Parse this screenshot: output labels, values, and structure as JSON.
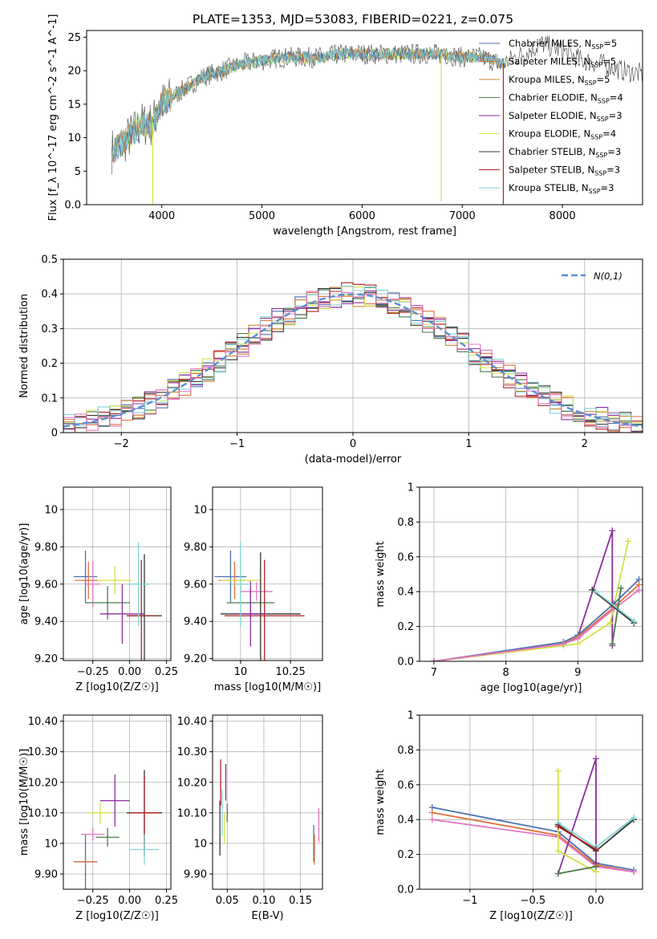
{
  "figure": {
    "title": "PLATE=1353, MJD=53083, FIBERID=0221, z=0.075"
  },
  "colors": {
    "Chabrier MILES": "#4c72b0",
    "Salpeter MILES": "#e0703c",
    "Kroupa MILES": "#c88a2a",
    "Chabrier ELODIE": "#4a7a4a",
    "Salpeter ELODIE": "#8b2d9e",
    "Kroupa ELODIE": "#d5e04a",
    "Chabrier STELIB": "#333333",
    "Salpeter STELIB": "#b22222",
    "Kroupa STELIB": "#7fd3d3",
    "normal": "#5b8ed6",
    "pink": "#e377c2",
    "lightblue": "#6a9be0"
  },
  "chart_data": [
    {
      "id": "spectrum",
      "type": "line",
      "xlabel": "wavelength [Angstrom, rest frame]",
      "ylabel": "Flux [f_λ 10^-17 erg cm^-2 s^-1 A^-1]",
      "ylabel_parts": [
        "Flux [f",
        "λ",
        "10",
        "−17",
        " erg cm",
        "−2",
        " s",
        "−1",
        " A",
        "−1",
        "]"
      ],
      "xlim": [
        3250,
        8800
      ],
      "ylim": [
        0,
        26
      ],
      "xticks": [
        4000,
        5000,
        6000,
        7000,
        8000
      ],
      "yticks": [
        0,
        5,
        10,
        15,
        20,
        25
      ],
      "continuum": {
        "x": [
          3500,
          3600,
          3700,
          3800,
          3900,
          4000,
          4100,
          4200,
          4400,
          4600,
          4800,
          5000,
          5200,
          5400,
          5600,
          5800,
          6000,
          6200,
          6400,
          6600,
          6800,
          7000,
          7200,
          7400,
          7600,
          7800,
          8000,
          8200,
          8400,
          8600,
          8800
        ],
        "y": [
          8,
          9,
          10.5,
          12,
          12,
          15,
          16,
          17,
          19,
          20,
          21,
          21.5,
          22,
          22,
          22,
          22.5,
          22.5,
          22.5,
          22.5,
          22.5,
          22.5,
          22,
          22,
          21,
          22.5,
          24,
          23,
          21.5,
          21,
          20,
          19.5
        ]
      },
      "legend": [
        {
          "label": "Chabrier MILES",
          "nssp": "5"
        },
        {
          "label": "Salpeter MILES",
          "nssp": "5"
        },
        {
          "label": "Kroupa MILES",
          "nssp": "5"
        },
        {
          "label": "Chabrier ELODIE",
          "nssp": "4"
        },
        {
          "label": "Salpeter ELODIE",
          "nssp": "3"
        },
        {
          "label": "Kroupa ELODIE",
          "nssp": "4"
        },
        {
          "label": "Chabrier STELIB",
          "nssp": "3"
        },
        {
          "label": "Salpeter STELIB",
          "nssp": "3"
        },
        {
          "label": "Kroupa STELIB",
          "nssp": "3"
        }
      ]
    },
    {
      "id": "residuals",
      "type": "line",
      "xlabel": "(data-model)/error",
      "ylabel": "Normed distribution",
      "xlim": [
        -2.5,
        2.5
      ],
      "ylim": [
        0,
        0.5
      ],
      "xticks": [
        -2,
        -1,
        0,
        1,
        2
      ],
      "yticks": [
        0.0,
        0.1,
        0.2,
        0.3,
        0.4,
        0.5
      ],
      "legend_label": "N(0,1)",
      "grid": true
    },
    {
      "id": "age-vs-Z",
      "type": "scatter",
      "xlabel": "Z [log10(Z/Z☉)]",
      "ylabel": "age [log10(age/yr)]",
      "xlim": [
        -0.45,
        0.28
      ],
      "ylim": [
        9.19,
        10.12
      ],
      "xticks": [
        -0.25,
        0.0,
        0.25
      ],
      "yticks": [
        9.2,
        9.4,
        9.6,
        9.8,
        10.0
      ],
      "points": [
        {
          "x": -0.3,
          "y": 9.64,
          "dx": 0.08,
          "dy": 0.28,
          "series": "Chabrier MILES"
        },
        {
          "x": -0.28,
          "y": 9.62,
          "dx": 0.09,
          "dy": 0.2,
          "series": "Salpeter MILES"
        },
        {
          "x": -0.25,
          "y": 9.6,
          "dx": 0.05,
          "dy": 0.25,
          "series": "pink"
        },
        {
          "x": -0.1,
          "y": 9.62,
          "dx": 0.12,
          "dy": 0.15,
          "series": "Kroupa ELODIE"
        },
        {
          "x": -0.15,
          "y": 9.5,
          "dx": 0.15,
          "dy": 0.18,
          "series": "Chabrier ELODIE"
        },
        {
          "x": -0.05,
          "y": 9.44,
          "dx": 0.15,
          "dy": 0.32,
          "series": "Salpeter ELODIE"
        },
        {
          "x": 0.1,
          "y": 9.43,
          "dx": 0.12,
          "dy": 0.66,
          "series": "Chabrier STELIB"
        },
        {
          "x": 0.08,
          "y": 9.43,
          "dx": 0.1,
          "dy": 0.6,
          "series": "Salpeter STELIB"
        },
        {
          "x": 0.06,
          "y": 9.6,
          "dx": 0.08,
          "dy": 0.45,
          "series": "Kroupa STELIB"
        }
      ]
    },
    {
      "id": "age-vs-mass",
      "type": "scatter",
      "xlabel": "mass [log10(M/M☉)]",
      "ylabel": "",
      "xlim": [
        9.86,
        10.41
      ],
      "ylim": [
        9.19,
        10.12
      ],
      "xticks": [
        10.0,
        10.25
      ],
      "yticks": [
        9.2,
        9.4,
        9.6,
        9.8,
        10.0
      ],
      "points": [
        {
          "x": 9.95,
          "y": 9.64,
          "dx": 0.08,
          "dy": 0.28,
          "series": "Chabrier MILES"
        },
        {
          "x": 9.97,
          "y": 9.62,
          "dx": 0.08,
          "dy": 0.2,
          "series": "Salpeter MILES"
        },
        {
          "x": 10.0,
          "y": 9.62,
          "dx": 0.1,
          "dy": 0.2,
          "series": "Kroupa ELODIE"
        },
        {
          "x": 10.05,
          "y": 9.5,
          "dx": 0.12,
          "dy": 0.15,
          "series": "Chabrier ELODIE"
        },
        {
          "x": 10.08,
          "y": 9.56,
          "dx": 0.08,
          "dy": 0.1,
          "series": "pink"
        },
        {
          "x": 10.1,
          "y": 9.44,
          "dx": 0.2,
          "dy": 0.66,
          "series": "Chabrier STELIB"
        },
        {
          "x": 10.12,
          "y": 9.43,
          "dx": 0.2,
          "dy": 0.6,
          "series": "Salpeter STELIB"
        },
        {
          "x": 10.05,
          "y": 9.44,
          "dx": 0.07,
          "dy": 0.35,
          "series": "Salpeter ELODIE"
        },
        {
          "x": 10.0,
          "y": 9.6,
          "dx": 0.04,
          "dy": 0.45,
          "series": "Kroupa STELIB"
        }
      ]
    },
    {
      "id": "weight-vs-age",
      "type": "line",
      "xlabel": "age [log10(age/yr)]",
      "ylabel": "mass weight",
      "xlim": [
        6.8,
        9.9
      ],
      "ylim": [
        0,
        1.0
      ],
      "xticks": [
        7,
        8,
        9
      ],
      "yticks": [
        0.0,
        0.2,
        0.4,
        0.6,
        0.8,
        1.0
      ],
      "grid": true,
      "series": [
        {
          "name": "Salpeter ELODIE",
          "x": [
            7.0,
            8.8,
            9.0,
            9.48,
            9.48
          ],
          "y": [
            0.0,
            0.1,
            0.14,
            0.75,
            0.09
          ]
        },
        {
          "name": "Kroupa ELODIE",
          "x": [
            7.0,
            8.8,
            9.0,
            9.45,
            9.7
          ],
          "y": [
            0.0,
            0.09,
            0.1,
            0.22,
            0.69
          ]
        },
        {
          "name": "Chabrier MILES",
          "x": [
            7.0,
            8.8,
            9.0,
            9.5,
            9.85
          ],
          "y": [
            0.0,
            0.11,
            0.15,
            0.33,
            0.47
          ]
        },
        {
          "name": "Salpeter MILES",
          "x": [
            7.0,
            8.8,
            9.0,
            9.5,
            9.85
          ],
          "y": [
            0.0,
            0.1,
            0.14,
            0.31,
            0.44
          ]
        },
        {
          "name": "pink",
          "x": [
            7.0,
            8.8,
            9.0,
            9.5,
            9.85
          ],
          "y": [
            0.0,
            0.1,
            0.13,
            0.3,
            0.41
          ]
        },
        {
          "name": "Chabrier STELIB",
          "x": [
            9.2,
            9.78
          ],
          "y": [
            0.41,
            0.22
          ]
        },
        {
          "name": "Kroupa STELIB",
          "x": [
            9.25,
            9.78
          ],
          "y": [
            0.4,
            0.23
          ]
        },
        {
          "name": "Chabrier ELODIE",
          "x": [
            9.48,
            9.6
          ],
          "y": [
            0.1,
            0.42
          ]
        }
      ]
    },
    {
      "id": "mass-vs-Z",
      "type": "scatter",
      "xlabel": "Z [log10(Z/Z☉)]",
      "ylabel": "mass [log10(M/M☉)]",
      "xlim": [
        -0.45,
        0.28
      ],
      "ylim": [
        9.85,
        10.42
      ],
      "xticks": [
        -0.25,
        0.0,
        0.25
      ],
      "yticks": [
        9.9,
        10.0,
        10.1,
        10.2,
        10.3,
        10.4
      ],
      "points": [
        {
          "x": -0.3,
          "y": 9.94,
          "dx": 0.08,
          "dy": 0.18,
          "series": "Chabrier MILES"
        },
        {
          "x": -0.3,
          "y": 9.94,
          "dx": 0.08,
          "dy": 0.03,
          "series": "Salpeter MILES"
        },
        {
          "x": -0.25,
          "y": 10.03,
          "dx": 0.08,
          "dy": 0.04,
          "series": "pink"
        },
        {
          "x": -0.2,
          "y": 10.1,
          "dx": 0.08,
          "dy": 0.07,
          "series": "Kroupa ELODIE"
        },
        {
          "x": -0.15,
          "y": 10.02,
          "dx": 0.08,
          "dy": 0.06,
          "series": "Chabrier ELODIE"
        },
        {
          "x": -0.1,
          "y": 10.14,
          "dx": 0.1,
          "dy": 0.17,
          "series": "Salpeter ELODIE"
        },
        {
          "x": 0.1,
          "y": 10.1,
          "dx": 0.12,
          "dy": 0.28,
          "series": "Chabrier STELIB"
        },
        {
          "x": 0.1,
          "y": 10.1,
          "dx": 0.1,
          "dy": 0.24,
          "series": "Salpeter STELIB"
        },
        {
          "x": 0.1,
          "y": 9.98,
          "dx": 0.1,
          "dy": 0.1,
          "series": "Kroupa STELIB"
        }
      ]
    },
    {
      "id": "mass-vs-EBV",
      "type": "scatter",
      "xlabel": "E(B-V)",
      "ylabel": "",
      "xlim": [
        0.03,
        0.18
      ],
      "ylim": [
        9.85,
        10.42
      ],
      "xticks": [
        0.05,
        0.1,
        0.15
      ],
      "yticks": [
        9.9,
        10.0,
        10.1,
        10.2,
        10.3,
        10.4
      ],
      "points": [
        {
          "x": 0.04,
          "y": 10.05,
          "dy": 0.18,
          "series": "Chabrier STELIB"
        },
        {
          "x": 0.041,
          "y": 10.2,
          "dy": 0.15,
          "series": "Salpeter STELIB"
        },
        {
          "x": 0.043,
          "y": 10.1,
          "dy": 0.15,
          "series": "Kroupa STELIB"
        },
        {
          "x": 0.046,
          "y": 10.05,
          "dy": 0.1,
          "series": "Kroupa ELODIE"
        },
        {
          "x": 0.048,
          "y": 10.2,
          "dy": 0.12,
          "series": "Salpeter ELODIE"
        },
        {
          "x": 0.05,
          "y": 10.1,
          "dy": 0.06,
          "series": "Chabrier ELODIE"
        },
        {
          "x": 0.168,
          "y": 10.0,
          "dy": 0.12,
          "series": "Chabrier MILES"
        },
        {
          "x": 0.169,
          "y": 9.98,
          "dy": 0.1,
          "series": "Salpeter MILES"
        },
        {
          "x": 0.175,
          "y": 10.06,
          "dy": 0.11,
          "series": "pink"
        }
      ]
    },
    {
      "id": "weight-vs-Z",
      "type": "line",
      "xlabel": "Z [log10(Z/Z☉)]",
      "ylabel": "mass weight",
      "xlim": [
        -1.4,
        0.37
      ],
      "ylim": [
        0,
        1.0
      ],
      "xticks": [
        -1.0,
        -0.5,
        0.0
      ],
      "yticks": [
        0.0,
        0.2,
        0.4,
        0.6,
        0.8,
        1.0
      ],
      "grid": true,
      "series": [
        {
          "name": "Chabrier MILES",
          "x": [
            -1.3,
            -0.3,
            0.0,
            0.3
          ],
          "y": [
            0.47,
            0.33,
            0.15,
            0.11
          ]
        },
        {
          "name": "Salpeter MILES",
          "x": [
            -1.3,
            -0.3,
            0.0,
            0.3
          ],
          "y": [
            0.44,
            0.31,
            0.14,
            0.1
          ]
        },
        {
          "name": "pink",
          "x": [
            -1.3,
            -0.3,
            0.0,
            0.3
          ],
          "y": [
            0.4,
            0.3,
            0.13,
            0.1
          ]
        },
        {
          "name": "Salpeter ELODIE",
          "x": [
            -0.3,
            0.0,
            0.0
          ],
          "y": [
            0.09,
            0.75,
            0.15
          ]
        },
        {
          "name": "Kroupa ELODIE",
          "x": [
            -0.3,
            -0.3,
            0.0
          ],
          "y": [
            0.68,
            0.22,
            0.1
          ]
        },
        {
          "name": "Chabrier ELODIE",
          "x": [
            -0.3,
            0.0
          ],
          "y": [
            0.09,
            0.13
          ]
        },
        {
          "name": "Chabrier STELIB",
          "x": [
            -0.3,
            0.0,
            0.3
          ],
          "y": [
            0.37,
            0.22,
            0.4
          ]
        },
        {
          "name": "Kroupa STELIB",
          "x": [
            -0.3,
            0.0,
            0.3
          ],
          "y": [
            0.38,
            0.24,
            0.41
          ]
        },
        {
          "name": "Salpeter STELIB",
          "x": [
            -0.3,
            0.0
          ],
          "y": [
            0.36,
            0.23
          ]
        }
      ]
    }
  ]
}
